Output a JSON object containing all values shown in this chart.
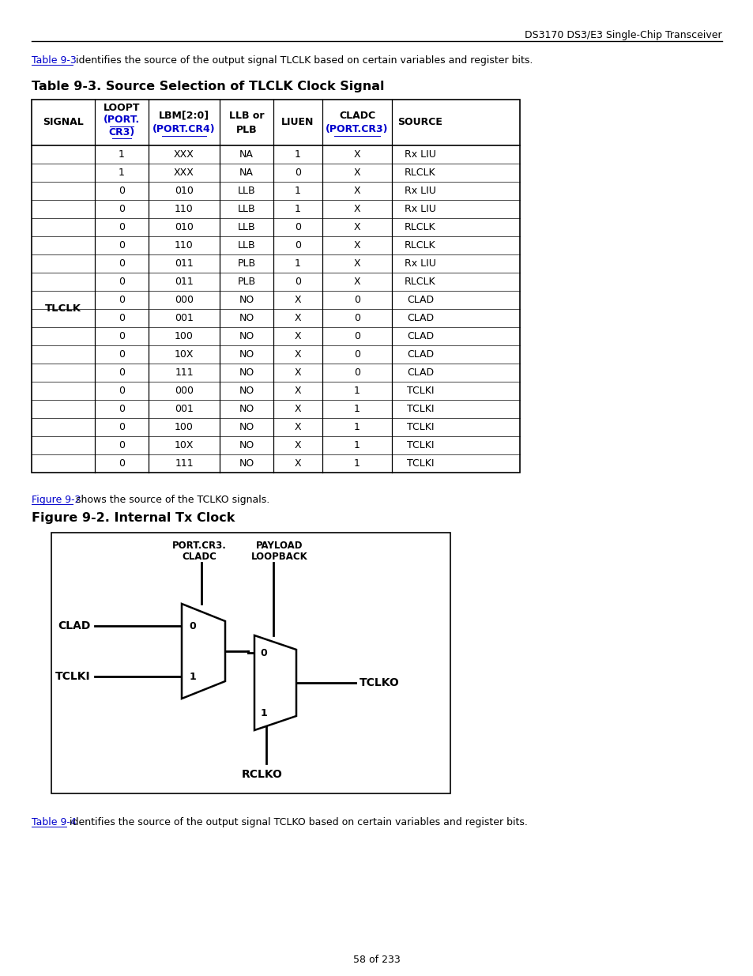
{
  "page_header": "DS3170 DS3/E3 Single-Chip Transceiver",
  "intro_text_link": "Table 9-3",
  "intro_text_rest": " identifies the source of the output signal TLCLK based on certain variables and register bits.",
  "table_title": "Table 9-3. Source Selection of TLCLK Clock Signal",
  "signal_label": "TLCLK",
  "rows": [
    [
      "1",
      "XXX",
      "NA",
      "1",
      "X",
      "Rx LIU"
    ],
    [
      "1",
      "XXX",
      "NA",
      "0",
      "X",
      "RLCLK"
    ],
    [
      "0",
      "010",
      "LLB",
      "1",
      "X",
      "Rx LIU"
    ],
    [
      "0",
      "110",
      "LLB",
      "1",
      "X",
      "Rx LIU"
    ],
    [
      "0",
      "010",
      "LLB",
      "0",
      "X",
      "RLCLK"
    ],
    [
      "0",
      "110",
      "LLB",
      "0",
      "X",
      "RLCLK"
    ],
    [
      "0",
      "011",
      "PLB",
      "1",
      "X",
      "Rx LIU"
    ],
    [
      "0",
      "011",
      "PLB",
      "0",
      "X",
      "RLCLK"
    ],
    [
      "0",
      "000",
      "NO",
      "X",
      "0",
      "CLAD"
    ],
    [
      "0",
      "001",
      "NO",
      "X",
      "0",
      "CLAD"
    ],
    [
      "0",
      "100",
      "NO",
      "X",
      "0",
      "CLAD"
    ],
    [
      "0",
      "10X",
      "NO",
      "X",
      "0",
      "CLAD"
    ],
    [
      "0",
      "111",
      "NO",
      "X",
      "0",
      "CLAD"
    ],
    [
      "0",
      "000",
      "NO",
      "X",
      "1",
      "TCLKI"
    ],
    [
      "0",
      "001",
      "NO",
      "X",
      "1",
      "TCLKI"
    ],
    [
      "0",
      "100",
      "NO",
      "X",
      "1",
      "TCLKI"
    ],
    [
      "0",
      "10X",
      "NO",
      "X",
      "1",
      "TCLKI"
    ],
    [
      "0",
      "111",
      "NO",
      "X",
      "1",
      "TCLKI"
    ]
  ],
  "fig_ref_link": "Figure 9-2",
  "fig_ref_rest": " shows the source of the TCLKO signals.",
  "fig_title": "Figure 9-2. Internal Tx Clock",
  "bottom_link": "Table 9-4",
  "bottom_text_rest": " identifies the source of the output signal TCLKO based on certain variables and register bits.",
  "page_footer": "58 of 233",
  "link_color": "#0000CC",
  "text_color": "#000000",
  "bg_color": "#ffffff"
}
